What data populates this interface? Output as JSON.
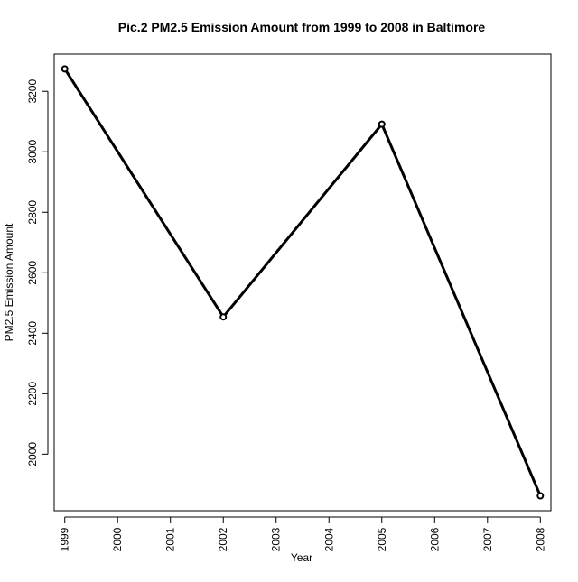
{
  "chart_data": {
    "type": "line",
    "title": "Pic.2 PM2.5 Emission Amount from 1999 to 2008 in Baltimore",
    "xlabel": "Year",
    "ylabel": "PM2.5 Emission Amount",
    "x": [
      1999,
      2002,
      2005,
      2008
    ],
    "series": [
      {
        "values": [
          3274.18,
          2453.92,
          3091.35,
          1862.28
        ]
      }
    ],
    "xlim": [
      1998.8,
      2008.2
    ],
    "ylim": [
      1813,
      3323
    ],
    "x_ticks": [
      "1999",
      "2000",
      "2001",
      "2002",
      "2003",
      "2004",
      "2005",
      "2006",
      "2007",
      "2008"
    ],
    "y_ticks": [
      "2000",
      "2200",
      "2400",
      "2600",
      "2800",
      "3000",
      "3200"
    ],
    "line_color": "#000000",
    "marker": "open-circle",
    "grid": false,
    "legend": "none"
  }
}
